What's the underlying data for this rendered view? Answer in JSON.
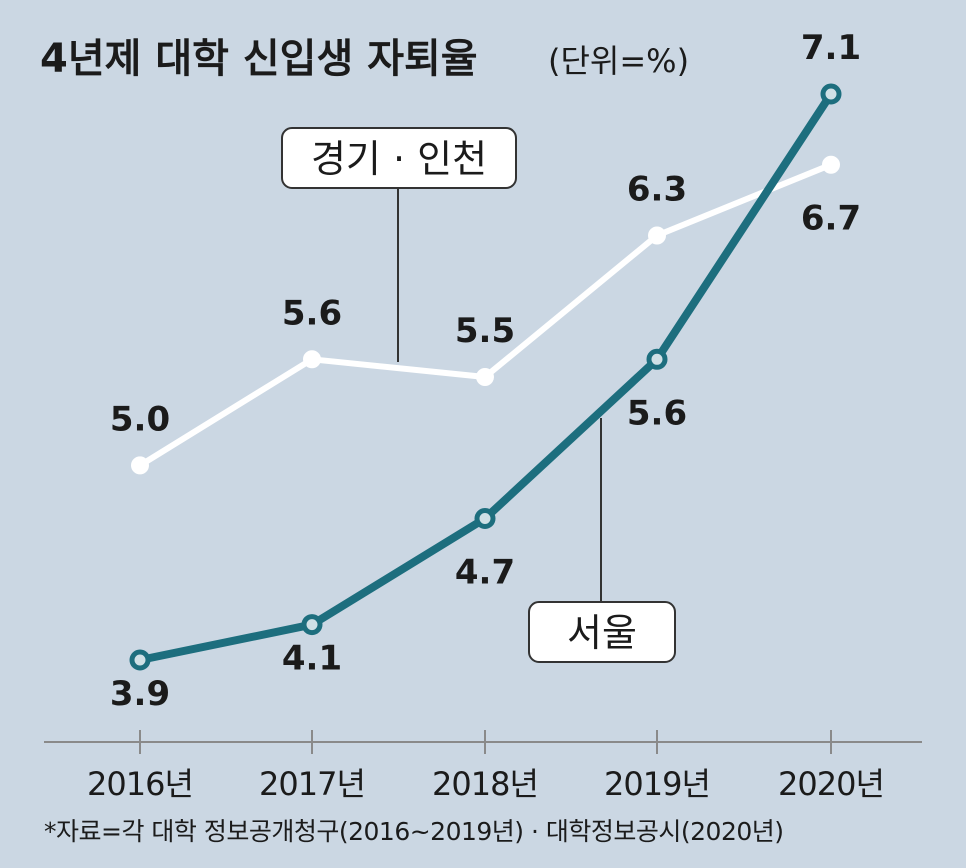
{
  "header": {
    "title": "4년제 대학 신입생 자퇴율",
    "unit": "(단위=%)"
  },
  "source": "*자료=각 대학 정보공개청구(2016~2019년) · 대학정보공시(2020년)",
  "colors": {
    "background": "#cbd7e3",
    "seoul": "#1d6e7e",
    "gyeonggi_incheon": "#ffffff"
  },
  "chart_data": {
    "type": "line",
    "x": [
      "2016년",
      "2017년",
      "2018년",
      "2019년",
      "2020년"
    ],
    "series": [
      {
        "name": "경기 · 인천",
        "values": [
          5.0,
          5.6,
          5.5,
          6.3,
          6.7
        ],
        "color": "#ffffff"
      },
      {
        "name": "서울",
        "values": [
          3.9,
          4.1,
          4.7,
          5.6,
          7.1
        ],
        "color": "#1d6e7e"
      }
    ],
    "data_labels": {
      "경기 · 인천": [
        "5.0",
        "5.6",
        "5.5",
        "6.3",
        "6.7"
      ],
      "서울": [
        "3.9",
        "4.1",
        "4.7",
        "5.6",
        "7.1"
      ]
    },
    "title": "4년제 대학 신입생 자퇴율",
    "unit": "%",
    "grid": false,
    "legend": "inline-labels"
  }
}
